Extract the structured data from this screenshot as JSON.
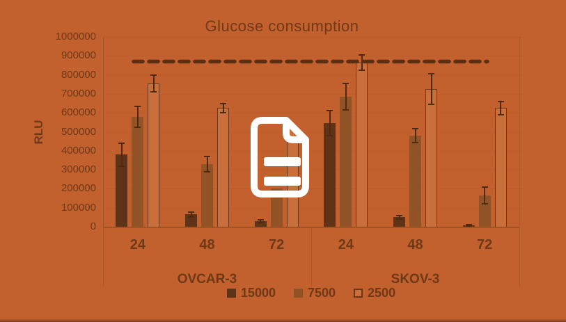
{
  "chart_data": {
    "type": "bar",
    "title": "Glucose consumption",
    "ylabel": "RLU",
    "ylim": [
      0,
      1000000
    ],
    "ytick_labels": [
      "0",
      "100000",
      "200000",
      "300000",
      "400000",
      "500000",
      "600000",
      "700000",
      "800000",
      "900000",
      "1000000"
    ],
    "groups": [
      {
        "label": "OVCAR-3",
        "ticks": [
          "24",
          "48",
          "72"
        ]
      },
      {
        "label": "SKOV-3",
        "ticks": [
          "24",
          "48",
          "72"
        ]
      }
    ],
    "series": [
      {
        "name": "15000",
        "color": "#5f3318",
        "values": [
          380000,
          65000,
          30000,
          545000,
          50000,
          8000
        ],
        "errors": [
          60000,
          12000,
          8000,
          65000,
          10000,
          4000
        ]
      },
      {
        "name": "7500",
        "color": "#925426",
        "values": [
          580000,
          330000,
          200000,
          685000,
          480000,
          165000
        ],
        "errors": [
          55000,
          40000,
          0,
          70000,
          35000,
          45000
        ]
      },
      {
        "name": "2500",
        "color": "#c96f3c",
        "outlined": true,
        "values": [
          755000,
          625000,
          520000,
          865000,
          725000,
          625000
        ],
        "errors": [
          45000,
          25000,
          0,
          40000,
          80000,
          35000
        ]
      }
    ],
    "reference_line": {
      "value": 870000,
      "style": "dashed"
    },
    "legend_position": "bottom",
    "gridlines": true
  },
  "overlay": {
    "icon": "document-icon"
  },
  "colors": {
    "background": "#c2602e",
    "text": "#6f3917",
    "axis": "#9c5224",
    "gridline": "#b75c2c",
    "reference_line": "#5c2f12",
    "error_bar": "#4f2a10",
    "bar_outline": "#6b3718",
    "icon": "#ffffff"
  }
}
